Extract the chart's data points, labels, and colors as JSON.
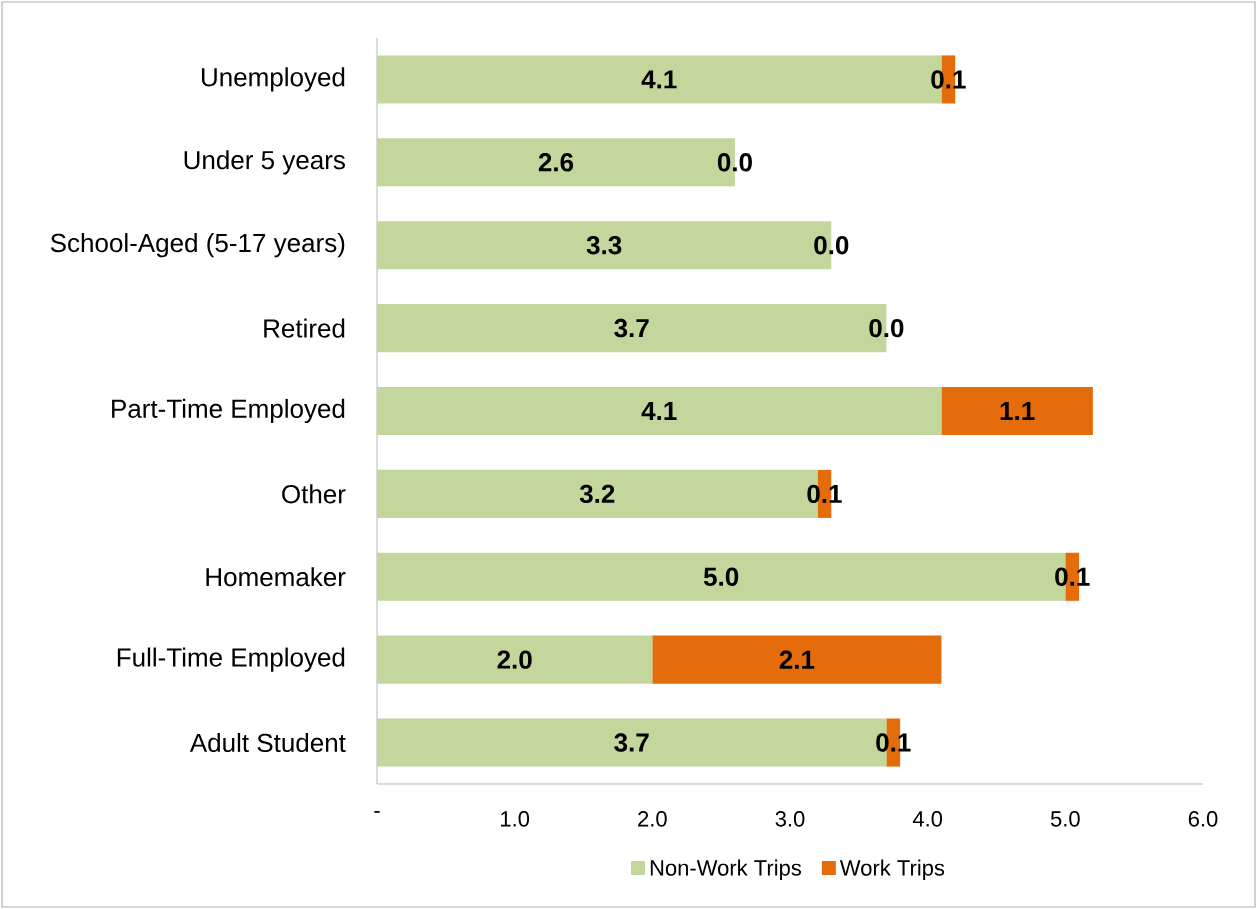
{
  "chart_data": {
    "type": "bar",
    "orientation": "horizontal",
    "stacked": true,
    "categories": [
      "Unemployed",
      "Under 5 years",
      "School-Aged (5-17 years)",
      "Retired",
      "Part-Time Employed",
      "Other",
      "Homemaker",
      "Full-Time Employed",
      "Adult Student"
    ],
    "series": [
      {
        "name": "Non-Work Trips",
        "color": "#c3d69b",
        "values": [
          4.1,
          2.6,
          3.3,
          3.7,
          4.1,
          3.2,
          5.0,
          2.0,
          3.7
        ],
        "value_labels": [
          "4.1",
          "2.6",
          "3.3",
          "3.7",
          "4.1",
          "3.2",
          "5.0",
          "2.0",
          "3.7"
        ]
      },
      {
        "name": "Work Trips",
        "color": "#e46c0a",
        "values": [
          0.1,
          0.0,
          0.0,
          0.0,
          1.1,
          0.1,
          0.1,
          2.1,
          0.1
        ],
        "value_labels": [
          "0.1",
          "0.0",
          "0.0",
          "0.0",
          "1.1",
          "0.1",
          "0.1",
          "2.1",
          "0.1"
        ]
      }
    ],
    "xlim": [
      0,
      6
    ],
    "xticks": [
      {
        "value": 0,
        "label": "-"
      },
      {
        "value": 1,
        "label": "1.0"
      },
      {
        "value": 2,
        "label": "2.0"
      },
      {
        "value": 3,
        "label": "3.0"
      },
      {
        "value": 4,
        "label": "4.0"
      },
      {
        "value": 5,
        "label": "5.0"
      },
      {
        "value": 6,
        "label": "6.0"
      }
    ],
    "legend": "bottom"
  }
}
